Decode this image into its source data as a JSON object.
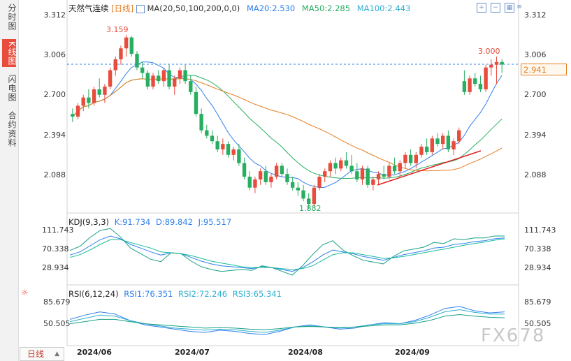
{
  "sidebar": {
    "tabs": [
      {
        "label": "分时图",
        "active": false
      },
      {
        "label": "K线图",
        "active": true
      },
      {
        "label": "闪电图",
        "active": false
      },
      {
        "label": "合约资料",
        "active": false
      }
    ]
  },
  "main_panel": {
    "symbol": "天然气连续",
    "period_tag": "[日线]",
    "ma_label": "MA(20,50,100,200,0,0)",
    "ma20": "MA20:2.530",
    "ma50": "MA50:2.285",
    "ma100": "MA100:2.443",
    "current_price": "2.941",
    "annotations": {
      "high": "3.159",
      "low": "1.882",
      "recent_high": "3.000"
    }
  },
  "kdj_panel": {
    "title": "KDJ(9,3,3)",
    "k": "K:91.734",
    "d": "D:89.842",
    "j": "J:95.517"
  },
  "rsi_panel": {
    "title": "RSI(6,12,24)",
    "rsi1": "RSI1:76.351",
    "rsi2": "RSI2:72.246",
    "rsi3": "RSI3:65.341"
  },
  "bottom_bar": {
    "period_button": "日线",
    "watermark": "FX678"
  },
  "colors": {
    "up": "#e74c3c",
    "down": "#27ae60",
    "ma20": "#2f80ed",
    "ma50": "#27ae60",
    "ma100": "#e67e22",
    "kdj_k": "#2f80ed",
    "kdj_d": "#1abc9c",
    "kdj_j": "#16a085"
  },
  "chart_data": [
    {
      "type": "candlestick",
      "title": "天然气连续",
      "x_ticks": [
        "2024/06",
        "2024/07",
        "2024/08",
        "2024/09"
      ],
      "y_ticks": [
        "3.312",
        "3.006",
        "2.700",
        "2.394",
        "2.088"
      ],
      "ylim": [
        1.88,
        3.312
      ],
      "candles": [
        {
          "o": 2.58,
          "h": 2.62,
          "l": 2.52,
          "c": 2.56
        },
        {
          "o": 2.56,
          "h": 2.66,
          "l": 2.54,
          "c": 2.64
        },
        {
          "o": 2.64,
          "h": 2.72,
          "l": 2.6,
          "c": 2.7
        },
        {
          "o": 2.7,
          "h": 2.76,
          "l": 2.62,
          "c": 2.66
        },
        {
          "o": 2.66,
          "h": 2.78,
          "l": 2.64,
          "c": 2.76
        },
        {
          "o": 2.76,
          "h": 2.84,
          "l": 2.7,
          "c": 2.72
        },
        {
          "o": 2.72,
          "h": 2.8,
          "l": 2.66,
          "c": 2.78
        },
        {
          "o": 2.78,
          "h": 2.92,
          "l": 2.76,
          "c": 2.9
        },
        {
          "o": 2.9,
          "h": 3.0,
          "l": 2.86,
          "c": 2.98
        },
        {
          "o": 2.98,
          "h": 3.08,
          "l": 2.94,
          "c": 3.06
        },
        {
          "o": 3.06,
          "h": 3.159,
          "l": 3.0,
          "c": 3.14
        },
        {
          "o": 3.14,
          "h": 3.15,
          "l": 3.0,
          "c": 3.02
        },
        {
          "o": 3.02,
          "h": 3.04,
          "l": 2.9,
          "c": 2.92
        },
        {
          "o": 2.92,
          "h": 2.96,
          "l": 2.84,
          "c": 2.88
        },
        {
          "o": 2.88,
          "h": 2.9,
          "l": 2.76,
          "c": 2.78
        },
        {
          "o": 2.78,
          "h": 2.88,
          "l": 2.76,
          "c": 2.86
        },
        {
          "o": 2.86,
          "h": 2.9,
          "l": 2.8,
          "c": 2.82
        },
        {
          "o": 2.82,
          "h": 2.92,
          "l": 2.78,
          "c": 2.9
        },
        {
          "o": 2.9,
          "h": 2.94,
          "l": 2.76,
          "c": 2.78
        },
        {
          "o": 2.78,
          "h": 2.86,
          "l": 2.72,
          "c": 2.84
        },
        {
          "o": 2.84,
          "h": 2.92,
          "l": 2.8,
          "c": 2.9
        },
        {
          "o": 2.9,
          "h": 2.94,
          "l": 2.8,
          "c": 2.82
        },
        {
          "o": 2.82,
          "h": 2.86,
          "l": 2.72,
          "c": 2.74
        },
        {
          "o": 2.74,
          "h": 2.78,
          "l": 2.56,
          "c": 2.58
        },
        {
          "o": 2.58,
          "h": 2.62,
          "l": 2.44,
          "c": 2.46
        },
        {
          "o": 2.46,
          "h": 2.5,
          "l": 2.4,
          "c": 2.42
        },
        {
          "o": 2.42,
          "h": 2.46,
          "l": 2.36,
          "c": 2.38
        },
        {
          "o": 2.38,
          "h": 2.42,
          "l": 2.3,
          "c": 2.32
        },
        {
          "o": 2.32,
          "h": 2.4,
          "l": 2.28,
          "c": 2.36
        },
        {
          "o": 2.36,
          "h": 2.38,
          "l": 2.26,
          "c": 2.28
        },
        {
          "o": 2.28,
          "h": 2.34,
          "l": 2.24,
          "c": 2.32
        },
        {
          "o": 2.32,
          "h": 2.36,
          "l": 2.2,
          "c": 2.22
        },
        {
          "o": 2.22,
          "h": 2.26,
          "l": 2.1,
          "c": 2.12
        },
        {
          "o": 2.12,
          "h": 2.16,
          "l": 2.02,
          "c": 2.04
        },
        {
          "o": 2.04,
          "h": 2.12,
          "l": 2.0,
          "c": 2.1
        },
        {
          "o": 2.1,
          "h": 2.18,
          "l": 2.06,
          "c": 2.16
        },
        {
          "o": 2.16,
          "h": 2.2,
          "l": 2.06,
          "c": 2.08
        },
        {
          "o": 2.08,
          "h": 2.14,
          "l": 2.04,
          "c": 2.12
        },
        {
          "o": 2.12,
          "h": 2.22,
          "l": 2.1,
          "c": 2.2
        },
        {
          "o": 2.2,
          "h": 2.22,
          "l": 2.12,
          "c": 2.14
        },
        {
          "o": 2.14,
          "h": 2.18,
          "l": 2.06,
          "c": 2.08
        },
        {
          "o": 2.08,
          "h": 2.12,
          "l": 2.02,
          "c": 2.04
        },
        {
          "o": 2.04,
          "h": 2.08,
          "l": 1.98,
          "c": 2.02
        },
        {
          "o": 2.02,
          "h": 2.06,
          "l": 1.94,
          "c": 1.96
        },
        {
          "o": 1.96,
          "h": 2.0,
          "l": 1.882,
          "c": 1.92
        },
        {
          "o": 1.92,
          "h": 2.06,
          "l": 1.9,
          "c": 2.04
        },
        {
          "o": 2.04,
          "h": 2.14,
          "l": 2.02,
          "c": 2.12
        },
        {
          "o": 2.12,
          "h": 2.18,
          "l": 2.08,
          "c": 2.16
        },
        {
          "o": 2.16,
          "h": 2.24,
          "l": 2.12,
          "c": 2.22
        },
        {
          "o": 2.22,
          "h": 2.26,
          "l": 2.14,
          "c": 2.18
        },
        {
          "o": 2.18,
          "h": 2.26,
          "l": 2.16,
          "c": 2.24
        },
        {
          "o": 2.24,
          "h": 2.3,
          "l": 2.18,
          "c": 2.2
        },
        {
          "o": 2.2,
          "h": 2.28,
          "l": 2.14,
          "c": 2.16
        },
        {
          "o": 2.16,
          "h": 2.22,
          "l": 2.08,
          "c": 2.1
        },
        {
          "o": 2.1,
          "h": 2.2,
          "l": 2.06,
          "c": 2.18
        },
        {
          "o": 2.18,
          "h": 2.2,
          "l": 2.04,
          "c": 2.06
        },
        {
          "o": 2.06,
          "h": 2.12,
          "l": 2.02,
          "c": 2.1
        },
        {
          "o": 2.1,
          "h": 2.16,
          "l": 2.06,
          "c": 2.14
        },
        {
          "o": 2.14,
          "h": 2.2,
          "l": 2.1,
          "c": 2.12
        },
        {
          "o": 2.12,
          "h": 2.22,
          "l": 2.1,
          "c": 2.2
        },
        {
          "o": 2.2,
          "h": 2.26,
          "l": 2.14,
          "c": 2.16
        },
        {
          "o": 2.16,
          "h": 2.24,
          "l": 2.12,
          "c": 2.22
        },
        {
          "o": 2.22,
          "h": 2.3,
          "l": 2.18,
          "c": 2.28
        },
        {
          "o": 2.28,
          "h": 2.32,
          "l": 2.2,
          "c": 2.22
        },
        {
          "o": 2.22,
          "h": 2.3,
          "l": 2.18,
          "c": 2.28
        },
        {
          "o": 2.28,
          "h": 2.36,
          "l": 2.26,
          "c": 2.34
        },
        {
          "o": 2.34,
          "h": 2.4,
          "l": 2.28,
          "c": 2.3
        },
        {
          "o": 2.3,
          "h": 2.42,
          "l": 2.28,
          "c": 2.4
        },
        {
          "o": 2.4,
          "h": 2.44,
          "l": 2.34,
          "c": 2.36
        },
        {
          "o": 2.36,
          "h": 2.44,
          "l": 2.32,
          "c": 2.42
        },
        {
          "o": 2.42,
          "h": 2.46,
          "l": 2.3,
          "c": 2.32
        },
        {
          "o": 2.32,
          "h": 2.4,
          "l": 2.28,
          "c": 2.38
        },
        {
          "o": 2.38,
          "h": 2.48,
          "l": 2.36,
          "c": 2.46
        },
        {
          "o": 2.82,
          "h": 2.9,
          "l": 2.72,
          "c": 2.74
        },
        {
          "o": 2.74,
          "h": 2.86,
          "l": 2.72,
          "c": 2.84
        },
        {
          "o": 2.84,
          "h": 2.88,
          "l": 2.78,
          "c": 2.8
        },
        {
          "o": 2.8,
          "h": 2.86,
          "l": 2.74,
          "c": 2.76
        },
        {
          "o": 2.76,
          "h": 2.94,
          "l": 2.74,
          "c": 2.92
        },
        {
          "o": 2.92,
          "h": 2.98,
          "l": 2.86,
          "c": 2.94
        },
        {
          "o": 2.94,
          "h": 3.0,
          "l": 2.8,
          "c": 2.96
        },
        {
          "o": 2.96,
          "h": 2.98,
          "l": 2.88,
          "c": 2.941
        }
      ]
    },
    {
      "type": "line",
      "title": "KDJ(9,3,3)",
      "y_ticks": [
        "111.743",
        "70.338",
        "28.934"
      ],
      "ylim": [
        0,
        120
      ],
      "series": [
        {
          "name": "K",
          "values": [
            55,
            62,
            75,
            88,
            96,
            90,
            78,
            70,
            62,
            55,
            60,
            58,
            50,
            42,
            36,
            32,
            30,
            28,
            26,
            30,
            28,
            24,
            20,
            28,
            40,
            55,
            66,
            62,
            58,
            52,
            48,
            44,
            50,
            56,
            60,
            64,
            70,
            72,
            78,
            80,
            84,
            86,
            90,
            92
          ]
        },
        {
          "name": "D",
          "values": [
            50,
            56,
            66,
            78,
            88,
            88,
            82,
            76,
            70,
            62,
            60,
            58,
            54,
            48,
            42,
            38,
            34,
            30,
            28,
            29,
            28,
            26,
            24,
            26,
            32,
            44,
            56,
            60,
            60,
            56,
            52,
            48,
            49,
            52,
            56,
            60,
            64,
            68,
            72,
            76,
            80,
            83,
            87,
            90
          ]
        },
        {
          "name": "J",
          "values": [
            65,
            74,
            93,
            108,
            112,
            94,
            70,
            58,
            46,
            41,
            60,
            58,
            42,
            30,
            24,
            20,
            22,
            24,
            22,
            32,
            28,
            20,
            12,
            32,
            56,
            77,
            86,
            66,
            54,
            44,
            40,
            36,
            52,
            64,
            68,
            72,
            82,
            80,
            90,
            88,
            92,
            92,
            96,
            96
          ]
        }
      ]
    },
    {
      "type": "line",
      "title": "RSI(6,12,24)",
      "y_ticks": [
        "85.679",
        "50.505"
      ],
      "ylim": [
        20,
        100
      ],
      "series": [
        {
          "name": "RSI1",
          "values": [
            62,
            70,
            76,
            72,
            60,
            52,
            48,
            44,
            40,
            38,
            42,
            40,
            36,
            34,
            40,
            48,
            52,
            48,
            44,
            46,
            52,
            56,
            54,
            60,
            70,
            82,
            86,
            78,
            74,
            76
          ]
        },
        {
          "name": "RSI2",
          "values": [
            58,
            64,
            70,
            68,
            60,
            54,
            50,
            46,
            44,
            42,
            44,
            43,
            40,
            38,
            42,
            48,
            50,
            48,
            46,
            48,
            52,
            54,
            54,
            58,
            66,
            76,
            80,
            75,
            72,
            72
          ]
        },
        {
          "name": "RSI3",
          "values": [
            54,
            58,
            62,
            62,
            58,
            54,
            52,
            50,
            48,
            46,
            47,
            46,
            44,
            43,
            45,
            48,
            49,
            48,
            47,
            48,
            50,
            52,
            52,
            55,
            60,
            68,
            71,
            68,
            66,
            65
          ]
        }
      ]
    }
  ]
}
